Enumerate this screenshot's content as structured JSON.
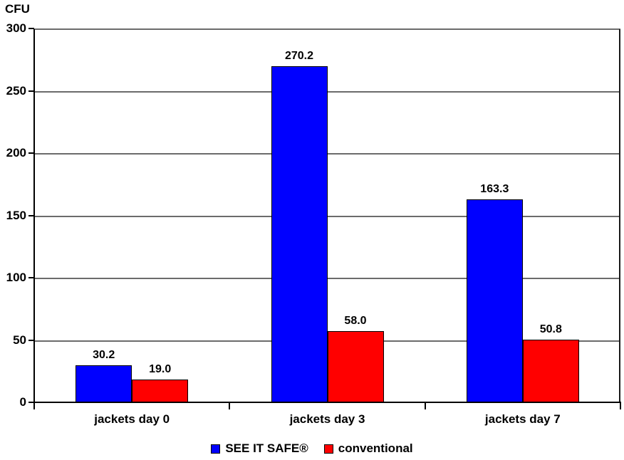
{
  "chart_data": {
    "type": "bar",
    "title": "",
    "ylabel": "CFU",
    "xlabel": "",
    "categories": [
      "jackets day 0",
      "jackets day 3",
      "jackets day 7"
    ],
    "series": [
      {
        "name": "SEE IT SAFE®",
        "color": "#0000ff",
        "values": [
          30.2,
          270.2,
          163.3
        ],
        "labels": [
          "30.2",
          "270.2",
          "163.3"
        ]
      },
      {
        "name": "conventional",
        "color": "#ff0000",
        "values": [
          19.0,
          58.0,
          50.8
        ],
        "labels": [
          "19.0",
          "58.0",
          "50.8"
        ]
      }
    ],
    "ylim": [
      0,
      300
    ],
    "yticks": [
      0,
      50,
      100,
      150,
      200,
      250,
      300
    ],
    "grid": true,
    "legend_position": "bottom"
  },
  "colors": {
    "bar_blue": "#0000ff",
    "bar_red": "#ff0000",
    "gridline": "#6b6b6b",
    "plot_right_border": "#1a1a1a",
    "axis": "#000000",
    "background": "#ffffff",
    "text": "#000000"
  }
}
